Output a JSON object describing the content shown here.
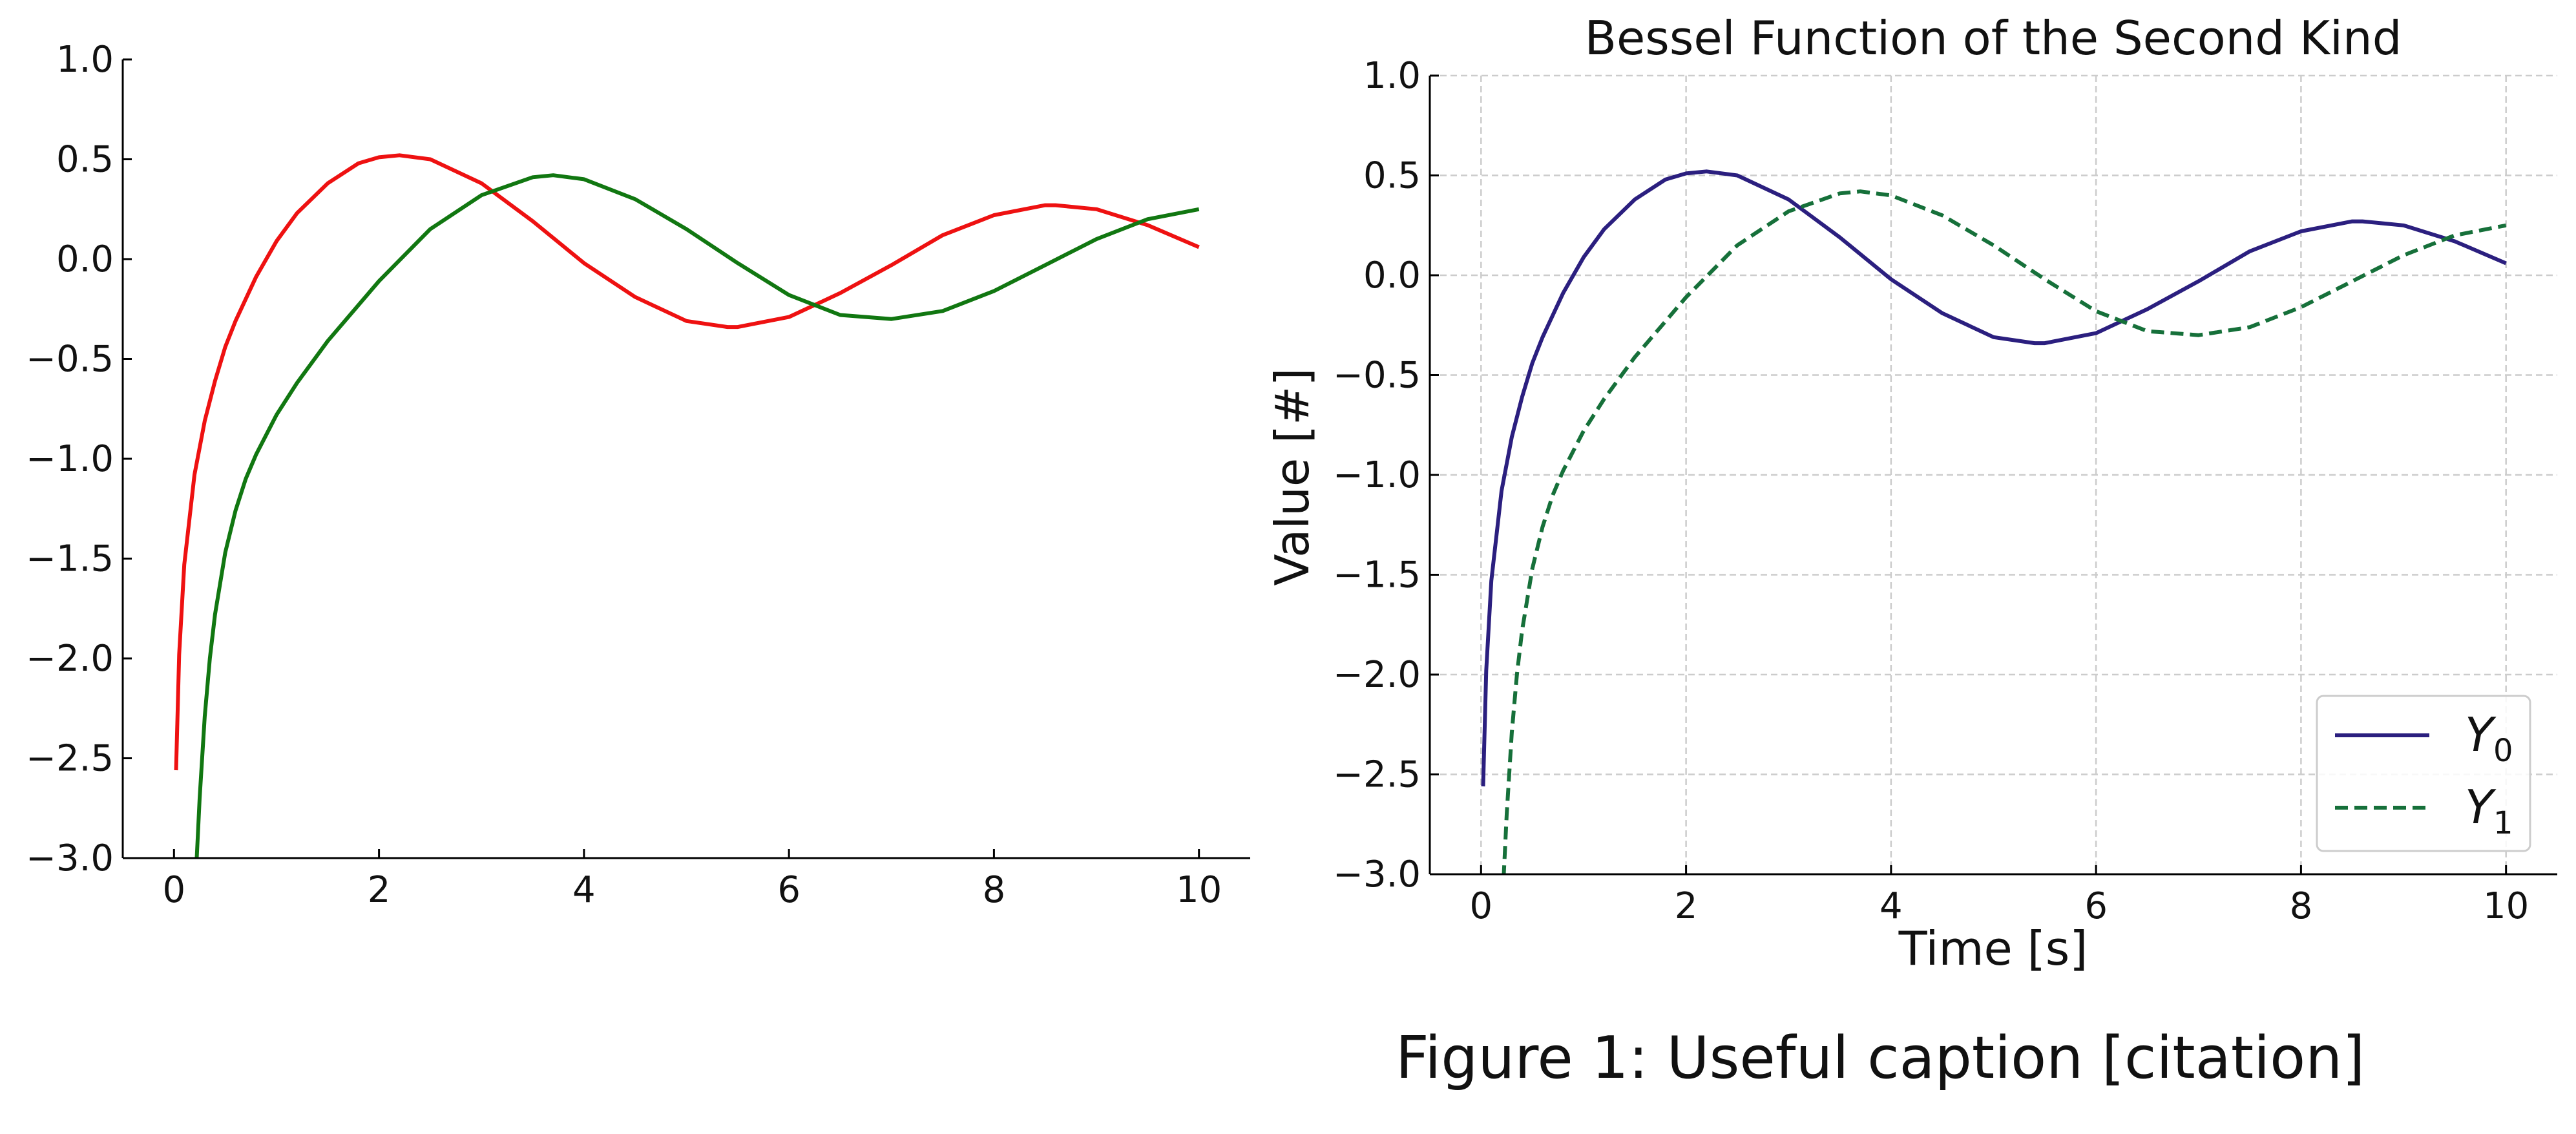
{
  "caption": "Figure 1: Useful caption [citation]",
  "chart_data": [
    {
      "type": "line",
      "title": "",
      "xlabel": "",
      "ylabel": "",
      "xlim": [
        -0.5,
        10.5
      ],
      "ylim": [
        -3.0,
        1.0
      ],
      "xticks": [
        0,
        2,
        4,
        6,
        8,
        10
      ],
      "yticks": [
        1.0,
        0.5,
        0.0,
        -0.5,
        -1.0,
        -1.5,
        -2.0,
        -2.5,
        -3.0
      ],
      "ytick_labels": [
        "1.0",
        "0.5",
        "0.0",
        "−0.5",
        "−1.0",
        "−1.5",
        "−2.0",
        "−2.5",
        "−3.0"
      ],
      "grid": false,
      "legend": null,
      "series": [
        {
          "color": "#ee1111",
          "dash": "solid",
          "x": [
            0.02,
            0.05,
            0.1,
            0.2,
            0.3,
            0.4,
            0.5,
            0.6,
            0.8,
            1.0,
            1.2,
            1.5,
            1.8,
            2.0,
            2.2,
            2.5,
            3.0,
            3.5,
            4.0,
            4.5,
            5.0,
            5.4,
            5.5,
            6.0,
            6.5,
            7.0,
            7.5,
            8.0,
            8.5,
            8.6,
            9.0,
            9.5,
            10.0
          ],
          "y": [
            -2.56,
            -1.98,
            -1.53,
            -1.08,
            -0.81,
            -0.61,
            -0.44,
            -0.31,
            -0.09,
            0.09,
            0.23,
            0.38,
            0.48,
            0.51,
            0.52,
            0.5,
            0.38,
            0.19,
            -0.02,
            -0.19,
            -0.31,
            -0.34,
            -0.34,
            -0.29,
            -0.17,
            -0.03,
            0.12,
            0.22,
            0.27,
            0.27,
            0.25,
            0.17,
            0.06
          ]
        },
        {
          "color": "#117711",
          "dash": "solid",
          "x": [
            0.22,
            0.25,
            0.3,
            0.35,
            0.4,
            0.5,
            0.6,
            0.7,
            0.8,
            1.0,
            1.2,
            1.5,
            2.0,
            2.5,
            3.0,
            3.5,
            3.7,
            4.0,
            4.5,
            5.0,
            5.5,
            6.0,
            6.5,
            7.0,
            7.5,
            8.0,
            8.5,
            9.0,
            9.5,
            10.0
          ],
          "y": [
            -3.02,
            -2.7,
            -2.29,
            -2.0,
            -1.78,
            -1.47,
            -1.26,
            -1.1,
            -0.98,
            -0.78,
            -0.62,
            -0.41,
            -0.11,
            0.15,
            0.32,
            0.41,
            0.42,
            0.4,
            0.3,
            0.15,
            -0.02,
            -0.18,
            -0.28,
            -0.3,
            -0.26,
            -0.16,
            -0.03,
            0.1,
            0.2,
            0.25
          ]
        }
      ]
    },
    {
      "type": "line",
      "title": "Bessel Function of the Second Kind",
      "xlabel": "Time [s]",
      "ylabel": "Value [#]",
      "xlim": [
        -0.5,
        10.5
      ],
      "ylim": [
        -3.0,
        1.0
      ],
      "xticks": [
        0,
        2,
        4,
        6,
        8,
        10
      ],
      "yticks": [
        1.0,
        0.5,
        0.0,
        -0.5,
        -1.0,
        -1.5,
        -2.0,
        -2.5,
        -3.0
      ],
      "ytick_labels": [
        "1.0",
        "0.5",
        "0.0",
        "−0.5",
        "−1.0",
        "−1.5",
        "−2.0",
        "−2.5",
        "−3.0"
      ],
      "grid": true,
      "legend": "lower-right",
      "series": [
        {
          "name": "Y0",
          "color": "#2b1f7f",
          "dash": "solid",
          "x": [
            0.02,
            0.05,
            0.1,
            0.2,
            0.3,
            0.4,
            0.5,
            0.6,
            0.8,
            1.0,
            1.2,
            1.5,
            1.8,
            2.0,
            2.2,
            2.5,
            3.0,
            3.5,
            4.0,
            4.5,
            5.0,
            5.4,
            5.5,
            6.0,
            6.5,
            7.0,
            7.5,
            8.0,
            8.5,
            8.6,
            9.0,
            9.5,
            10.0
          ],
          "y": [
            -2.56,
            -1.98,
            -1.53,
            -1.08,
            -0.81,
            -0.61,
            -0.44,
            -0.31,
            -0.09,
            0.09,
            0.23,
            0.38,
            0.48,
            0.51,
            0.52,
            0.5,
            0.38,
            0.19,
            -0.02,
            -0.19,
            -0.31,
            -0.34,
            -0.34,
            -0.29,
            -0.17,
            -0.03,
            0.12,
            0.22,
            0.27,
            0.27,
            0.25,
            0.17,
            0.06
          ]
        },
        {
          "name": "Y1",
          "color": "#16703a",
          "dash": "dashed",
          "x": [
            0.22,
            0.25,
            0.3,
            0.35,
            0.4,
            0.5,
            0.6,
            0.7,
            0.8,
            1.0,
            1.2,
            1.5,
            2.0,
            2.5,
            3.0,
            3.5,
            3.7,
            4.0,
            4.5,
            5.0,
            5.5,
            6.0,
            6.5,
            7.0,
            7.5,
            8.0,
            8.5,
            9.0,
            9.5,
            10.0
          ],
          "y": [
            -3.02,
            -2.7,
            -2.29,
            -2.0,
            -1.78,
            -1.47,
            -1.26,
            -1.1,
            -0.98,
            -0.78,
            -0.62,
            -0.41,
            -0.11,
            0.15,
            0.32,
            0.41,
            0.42,
            0.4,
            0.3,
            0.15,
            -0.02,
            -0.18,
            -0.28,
            -0.3,
            -0.26,
            -0.16,
            -0.03,
            0.1,
            0.2,
            0.25
          ]
        }
      ]
    }
  ]
}
